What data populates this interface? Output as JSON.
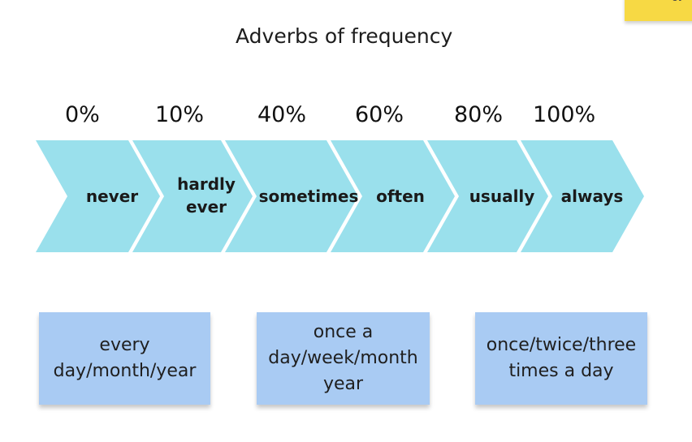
{
  "title": "Adverbs of frequency",
  "corner_note": {
    "text": "ot"
  },
  "scale": [
    {
      "percent": "0%",
      "adverb": "never"
    },
    {
      "percent": "10%",
      "adverb": "hardly ever"
    },
    {
      "percent": "40%",
      "adverb": "sometimes"
    },
    {
      "percent": "60%",
      "adverb": "often"
    },
    {
      "percent": "80%",
      "adverb": "usually"
    },
    {
      "percent": "100%",
      "adverb": "always"
    }
  ],
  "notes": [
    "every day/month/year",
    "once a day/week/month year",
    "once/twice/three times a day"
  ],
  "colors": {
    "chevron": "#9ae0ec",
    "note_blue": "#a9cbf3",
    "note_yellow": "#f7d944"
  }
}
